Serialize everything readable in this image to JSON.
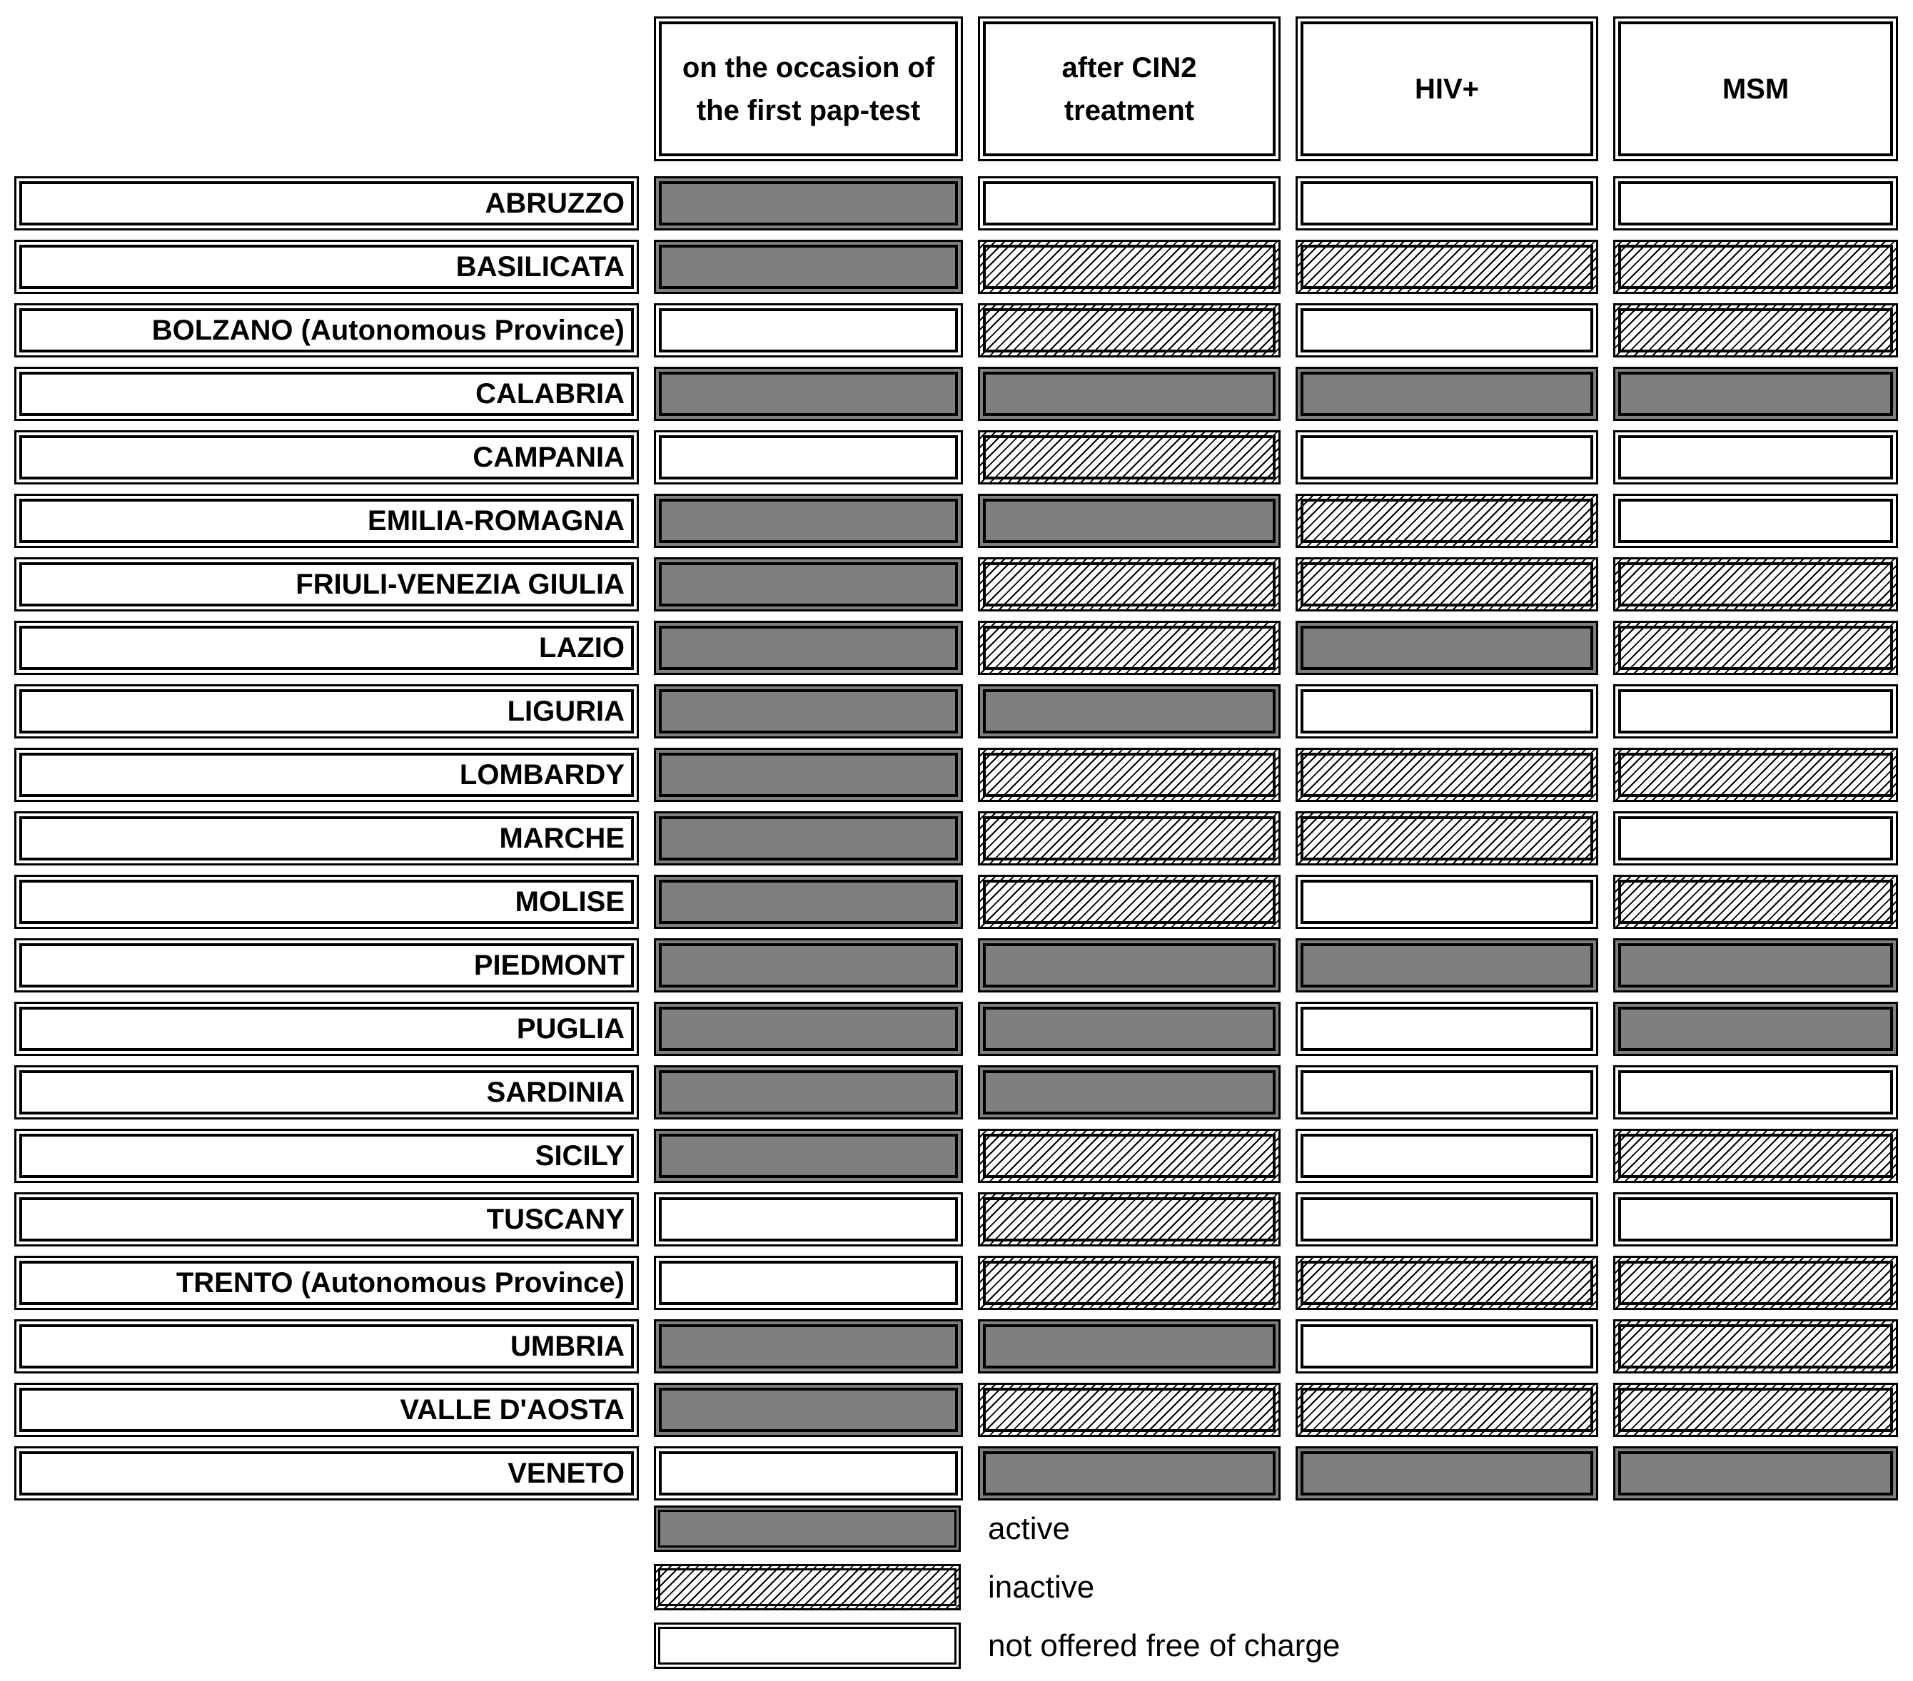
{
  "figure": {
    "background": "#ffffff"
  },
  "chart_data": {
    "type": "heatmap",
    "title": "",
    "columns": [
      "on the occasion of the first pap-test",
      "after CIN2 treatment",
      "HIV+",
      "MSM"
    ],
    "rows": [
      "ABRUZZO",
      "BASILICATA",
      "BOLZANO (Autonomous Province)",
      "CALABRIA",
      "CAMPANIA",
      "EMILIA-ROMAGNA",
      "FRIULI-VENEZIA GIULIA",
      "LAZIO",
      "LIGURIA",
      "LOMBARDY",
      "MARCHE",
      "MOLISE",
      "PIEDMONT",
      "PUGLIA",
      "SARDINIA",
      "SICILY",
      "TUSCANY",
      "TRENTO (Autonomous Province)",
      "UMBRIA",
      "VALLE D'AOSTA",
      "VENETO"
    ],
    "values": [
      [
        "active",
        "not_offered",
        "not_offered",
        "not_offered"
      ],
      [
        "active",
        "inactive",
        "inactive",
        "inactive"
      ],
      [
        "not_offered",
        "inactive",
        "not_offered",
        "inactive"
      ],
      [
        "active",
        "active",
        "active",
        "active"
      ],
      [
        "not_offered",
        "inactive",
        "not_offered",
        "not_offered"
      ],
      [
        "active",
        "active",
        "inactive",
        "not_offered"
      ],
      [
        "active",
        "inactive",
        "inactive",
        "inactive"
      ],
      [
        "active",
        "inactive",
        "active",
        "inactive"
      ],
      [
        "active",
        "active",
        "not_offered",
        "not_offered"
      ],
      [
        "active",
        "inactive",
        "inactive",
        "inactive"
      ],
      [
        "active",
        "inactive",
        "inactive",
        "not_offered"
      ],
      [
        "active",
        "inactive",
        "not_offered",
        "inactive"
      ],
      [
        "active",
        "active",
        "active",
        "active"
      ],
      [
        "active",
        "active",
        "not_offered",
        "active"
      ],
      [
        "active",
        "active",
        "not_offered",
        "not_offered"
      ],
      [
        "active",
        "inactive",
        "not_offered",
        "inactive"
      ],
      [
        "not_offered",
        "inactive",
        "not_offered",
        "not_offered"
      ],
      [
        "not_offered",
        "inactive",
        "inactive",
        "inactive"
      ],
      [
        "active",
        "active",
        "not_offered",
        "inactive"
      ],
      [
        "active",
        "inactive",
        "inactive",
        "inactive"
      ],
      [
        "not_offered",
        "active",
        "active",
        "active"
      ]
    ],
    "legend": [
      {
        "state": "active",
        "label": "active"
      },
      {
        "state": "inactive",
        "label": "inactive"
      },
      {
        "state": "not_offered",
        "label": "not offered free of charge"
      }
    ],
    "legend_position": "bottom-left",
    "grid": "off"
  },
  "colors": {
    "active_fill": "#7f7f7f",
    "hatch_line": "#000000",
    "border": "#000000",
    "background": "#ffffff",
    "text": "#000000"
  }
}
